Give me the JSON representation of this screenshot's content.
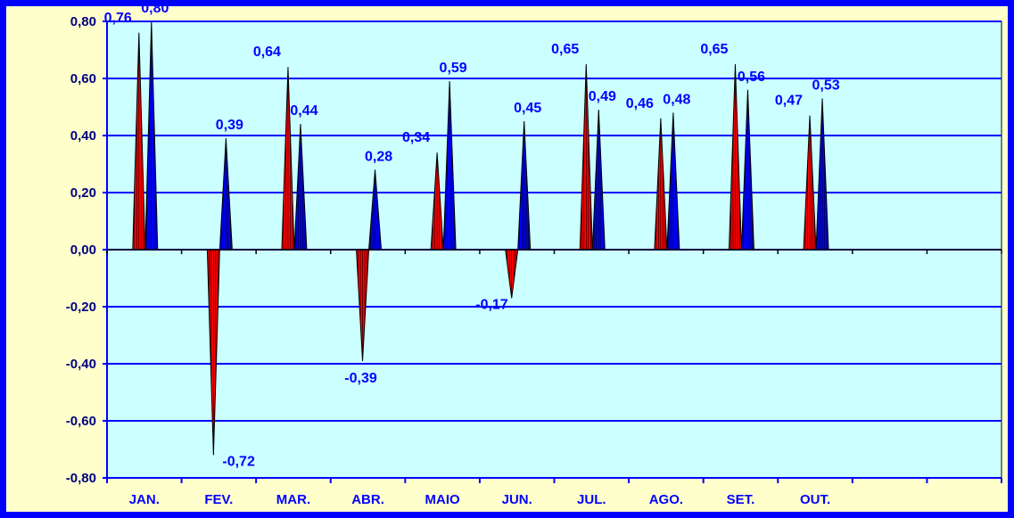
{
  "chart_data": {
    "type": "area",
    "categories": [
      "JAN.",
      "FEV.",
      "MAR.",
      "ABR.",
      "MAIO",
      "JUN.",
      "JUL.",
      "AGO.",
      "SET.",
      "OUT."
    ],
    "category_slots": 12,
    "series": [
      {
        "values": [
          0.76,
          -0.72,
          0.64,
          -0.39,
          0.34,
          -0.17,
          0.65,
          0.46,
          0.65,
          0.47
        ],
        "labels": [
          "0,76",
          "-0,72",
          "0,64",
          "-0,39",
          "0,34",
          "-0,17",
          "0,65",
          "0,46",
          "0,65",
          "0,47"
        ]
      },
      {
        "values": [
          0.8,
          0.39,
          0.44,
          0.28,
          0.59,
          0.45,
          0.49,
          0.48,
          0.56,
          0.53
        ],
        "labels": [
          "0,80",
          "0,39",
          "0,44",
          "0,28",
          "0,59",
          "0,45",
          "0,49",
          "0,48",
          "0,56",
          "0,53"
        ]
      }
    ],
    "ylim": [
      -0.8,
      0.8
    ],
    "yticks": [
      "-0,80",
      "-0,60",
      "-0,40",
      "-0,20",
      "0,00",
      "0,20",
      "0,40",
      "0,60",
      "0,80"
    ],
    "grid": true,
    "colors": {
      "border": "#0000FF",
      "background": "#FFFFCC",
      "plot_area": "#CCFFFF",
      "gridline": "#0000FF",
      "series_1": "#FF0000",
      "series_2": "#0000FF",
      "labels": "#0000FF",
      "axis_labels": "#000080"
    }
  }
}
